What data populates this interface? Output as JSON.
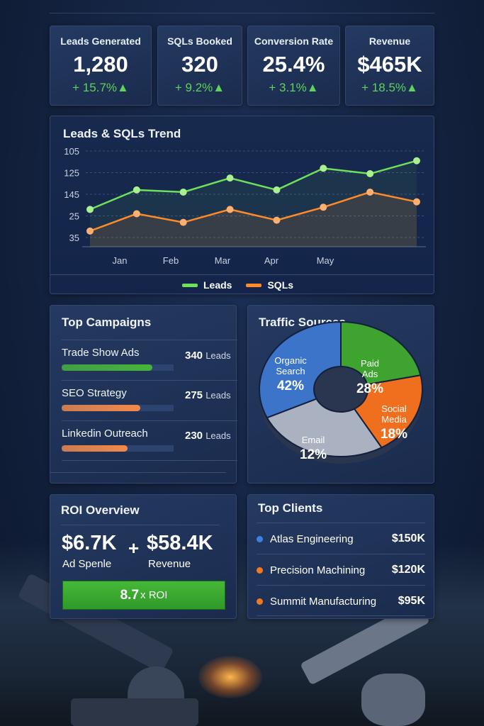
{
  "kpis": [
    {
      "title": "Leads Generated",
      "value": "1,280",
      "change": "+ 15.7%▲"
    },
    {
      "title": "SQLs Booked",
      "value": "320",
      "change": "+ 9.2%▲"
    },
    {
      "title": "Conversion Rate",
      "value": "25.4%",
      "change": "+ 3.1%▲"
    },
    {
      "title": "Revenue",
      "value": "$465K",
      "change": "+ 18.5%▲"
    }
  ],
  "chart_data": {
    "type": "line",
    "title": "Leads & SQLs Trend",
    "y_tick_labels": [
      "105",
      "125",
      "145",
      "25",
      "35"
    ],
    "x_tick_labels": [
      "Jan",
      "Feb",
      "Mar",
      "Apr",
      "May"
    ],
    "grid": true,
    "legend": "bottom",
    "series": [
      {
        "name": "Leads",
        "color": "#6fe05a",
        "values": [
          1.3,
          2.2,
          2.1,
          2.75,
          2.2,
          3.2,
          2.95,
          3.55
        ]
      },
      {
        "name": "SQLs",
        "color": "#ff8a2a",
        "values": [
          0.3,
          1.1,
          0.7,
          1.3,
          0.8,
          1.4,
          2.1,
          1.65
        ]
      }
    ],
    "y_value_note_units": "gridline index (0 = 35, 4 = 105)"
  },
  "campaigns": {
    "title": "Top Campaigns",
    "items": [
      {
        "name": "Trade Show Ads",
        "value": "340",
        "unit": "Leads",
        "progress": 0.81,
        "color": "#46b53a"
      },
      {
        "name": "SEO Strategy",
        "value": "275",
        "unit": "Leads",
        "progress": 0.7,
        "color": "#f3894a"
      },
      {
        "name": "Linkedin Outreach",
        "value": "230",
        "unit": "Leads",
        "progress": 0.59,
        "color": "#f3894a"
      }
    ]
  },
  "traffic": {
    "title": "Traffic Sources",
    "slices": [
      {
        "label1": "Organic",
        "label2": "Search",
        "pct": "42%",
        "value": 42,
        "color": "#3b74c9"
      },
      {
        "label1": "Paid",
        "label2": "Ads",
        "pct": "28%",
        "value": 28,
        "color": "#3ea42f"
      },
      {
        "label1": "Social",
        "label2": "Media",
        "pct": "18%",
        "value": 18,
        "color": "#f06f1e"
      },
      {
        "label1": "Email",
        "label2": "",
        "pct": "12%",
        "value": 12,
        "color": "#aab2c2"
      }
    ]
  },
  "roi": {
    "title": "ROI Overview",
    "spend": "$6.7K",
    "spend_label": "Ad Spenle",
    "plus": "+",
    "revenue": "$58.4K",
    "revenue_label": "Revenue",
    "roi_value": "8.7",
    "roi_label": "x ROI"
  },
  "clients": {
    "title": "Top Clients",
    "items": [
      {
        "name": "Atlas Engineering",
        "amount": "$150K",
        "color": "#3f7fe0"
      },
      {
        "name": "Precision Machining",
        "amount": "$120K",
        "color": "#f07a22"
      },
      {
        "name": "Summit Manufacturing",
        "amount": "$95K",
        "color": "#f07a22"
      }
    ]
  }
}
